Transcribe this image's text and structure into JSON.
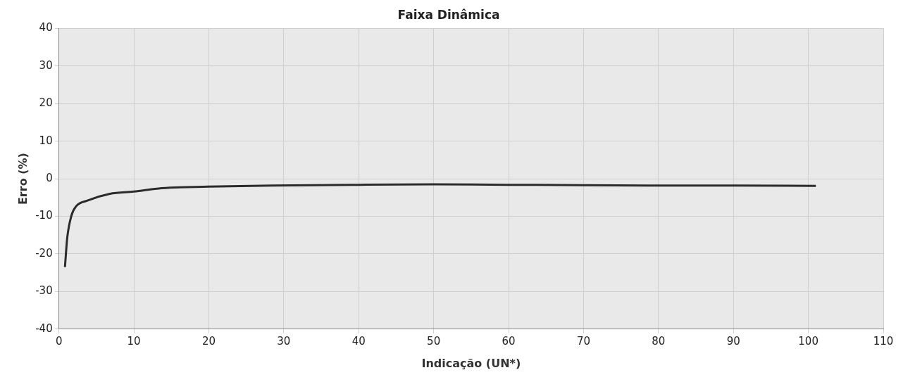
{
  "chart_data": {
    "type": "line",
    "title": "Faixa Dinâmica",
    "xlabel": "Indicação (UN*)",
    "ylabel": "Erro (%)",
    "x": [
      0.8,
      1.1,
      1.65,
      2.3,
      3.8,
      6.8,
      10,
      13.7,
      19.9,
      28.5,
      40,
      50,
      60,
      70,
      80,
      90,
      101
    ],
    "series": [
      {
        "color": "#2b2b2b",
        "values": [
          -23.5,
          -15.8,
          -9.9,
          -7.3,
          -5.8,
          -4.0,
          -3.4,
          -2.5,
          -2.1,
          -1.8,
          -1.6,
          -1.5,
          -1.6,
          -1.7,
          -1.8,
          -1.8,
          -1.9
        ]
      }
    ],
    "xlim": [
      0,
      110
    ],
    "xticks": [
      0,
      10,
      20,
      30,
      40,
      50,
      60,
      70,
      80,
      90,
      100,
      110
    ],
    "ylim": [
      -40,
      40
    ],
    "yticks": [
      -40,
      -30,
      -20,
      -10,
      0,
      10,
      20,
      30,
      40
    ],
    "grid": true,
    "legend": false,
    "marker": "none",
    "line_style": "solid"
  }
}
